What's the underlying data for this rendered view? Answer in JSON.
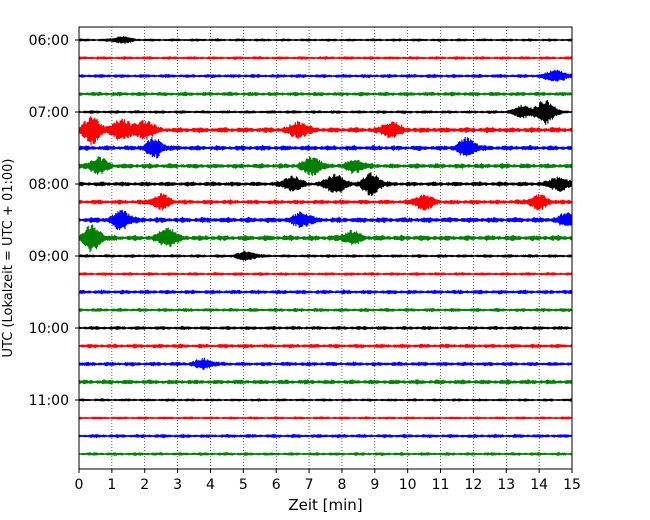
{
  "chart_data": {
    "type": "line",
    "title": "",
    "xlabel": "Zeit  [min]",
    "ylabel": "UTC (Lokalzeit = UTC + 01:00)",
    "xlim": [
      0,
      15
    ],
    "x_ticks": [
      "0",
      "1",
      "2",
      "3",
      "4",
      "5",
      "6",
      "7",
      "8",
      "9",
      "10",
      "11",
      "12",
      "13",
      "14",
      "15"
    ],
    "y_tick_labels": [
      "06:00",
      "07:00",
      "08:00",
      "09:00",
      "10:00",
      "11:00"
    ],
    "grid": {
      "x": true,
      "style": "dotted"
    },
    "trace_interval_minutes": 15,
    "start_time": "06:00",
    "trace_colors": [
      "#000000",
      "#ff0000",
      "#0000ff",
      "#008000"
    ],
    "traces": [
      {
        "start": "06:00",
        "color": "#000000",
        "amplitude": 0.2,
        "events": [
          [
            1.3,
            0.4
          ]
        ]
      },
      {
        "start": "06:15",
        "color": "#ff0000",
        "amplitude": 0.3,
        "events": []
      },
      {
        "start": "06:30",
        "color": "#0000ff",
        "amplitude": 0.4,
        "events": [
          [
            14.5,
            0.8
          ]
        ]
      },
      {
        "start": "06:45",
        "color": "#008000",
        "amplitude": 0.5,
        "events": []
      },
      {
        "start": "07:00",
        "color": "#000000",
        "amplitude": 0.3,
        "events": [
          [
            14.2,
            1.6
          ],
          [
            13.5,
            0.8
          ]
        ]
      },
      {
        "start": "07:15",
        "color": "#ff0000",
        "amplitude": 0.8,
        "events": [
          [
            0.4,
            1.8
          ],
          [
            1.3,
            1.4
          ],
          [
            2.0,
            1.2
          ],
          [
            6.7,
            1.0
          ],
          [
            9.5,
            1.0
          ]
        ]
      },
      {
        "start": "07:30",
        "color": "#0000ff",
        "amplitude": 0.7,
        "events": [
          [
            2.3,
            1.2
          ],
          [
            11.8,
            1.2
          ]
        ]
      },
      {
        "start": "07:45",
        "color": "#008000",
        "amplitude": 0.7,
        "events": [
          [
            0.6,
            1.0
          ],
          [
            7.1,
            1.2
          ],
          [
            8.4,
            0.8
          ]
        ]
      },
      {
        "start": "08:00",
        "color": "#000000",
        "amplitude": 0.6,
        "events": [
          [
            7.8,
            1.3
          ],
          [
            8.9,
            1.4
          ],
          [
            6.5,
            0.9
          ],
          [
            14.6,
            0.9
          ]
        ]
      },
      {
        "start": "08:15",
        "color": "#ff0000",
        "amplitude": 0.6,
        "events": [
          [
            2.5,
            0.9
          ],
          [
            10.5,
            1.0
          ],
          [
            14.0,
            0.9
          ]
        ]
      },
      {
        "start": "08:30",
        "color": "#0000ff",
        "amplitude": 0.8,
        "events": [
          [
            1.3,
            1.2
          ],
          [
            6.8,
            0.9
          ],
          [
            14.9,
            0.9
          ]
        ]
      },
      {
        "start": "08:45",
        "color": "#008000",
        "amplitude": 0.8,
        "events": [
          [
            0.4,
            1.6
          ],
          [
            2.7,
            1.2
          ],
          [
            8.3,
            0.8
          ]
        ]
      },
      {
        "start": "09:00",
        "color": "#000000",
        "amplitude": 0.3,
        "events": [
          [
            5.1,
            0.6
          ]
        ]
      },
      {
        "start": "09:15",
        "color": "#ff0000",
        "amplitude": 0.3,
        "events": []
      },
      {
        "start": "09:30",
        "color": "#0000ff",
        "amplitude": 0.5,
        "events": []
      },
      {
        "start": "09:45",
        "color": "#008000",
        "amplitude": 0.4,
        "events": []
      },
      {
        "start": "10:00",
        "color": "#000000",
        "amplitude": 0.4,
        "events": []
      },
      {
        "start": "10:15",
        "color": "#ff0000",
        "amplitude": 0.5,
        "events": []
      },
      {
        "start": "10:30",
        "color": "#0000ff",
        "amplitude": 0.5,
        "events": [
          [
            3.8,
            0.6
          ]
        ]
      },
      {
        "start": "10:45",
        "color": "#008000",
        "amplitude": 0.6,
        "events": []
      },
      {
        "start": "11:00",
        "color": "#000000",
        "amplitude": 0.2,
        "events": []
      },
      {
        "start": "11:15",
        "color": "#ff0000",
        "amplitude": 0.2,
        "events": []
      },
      {
        "start": "11:30",
        "color": "#0000ff",
        "amplitude": 0.4,
        "events": []
      },
      {
        "start": "11:45",
        "color": "#008000",
        "amplitude": 0.3,
        "events": []
      }
    ]
  }
}
